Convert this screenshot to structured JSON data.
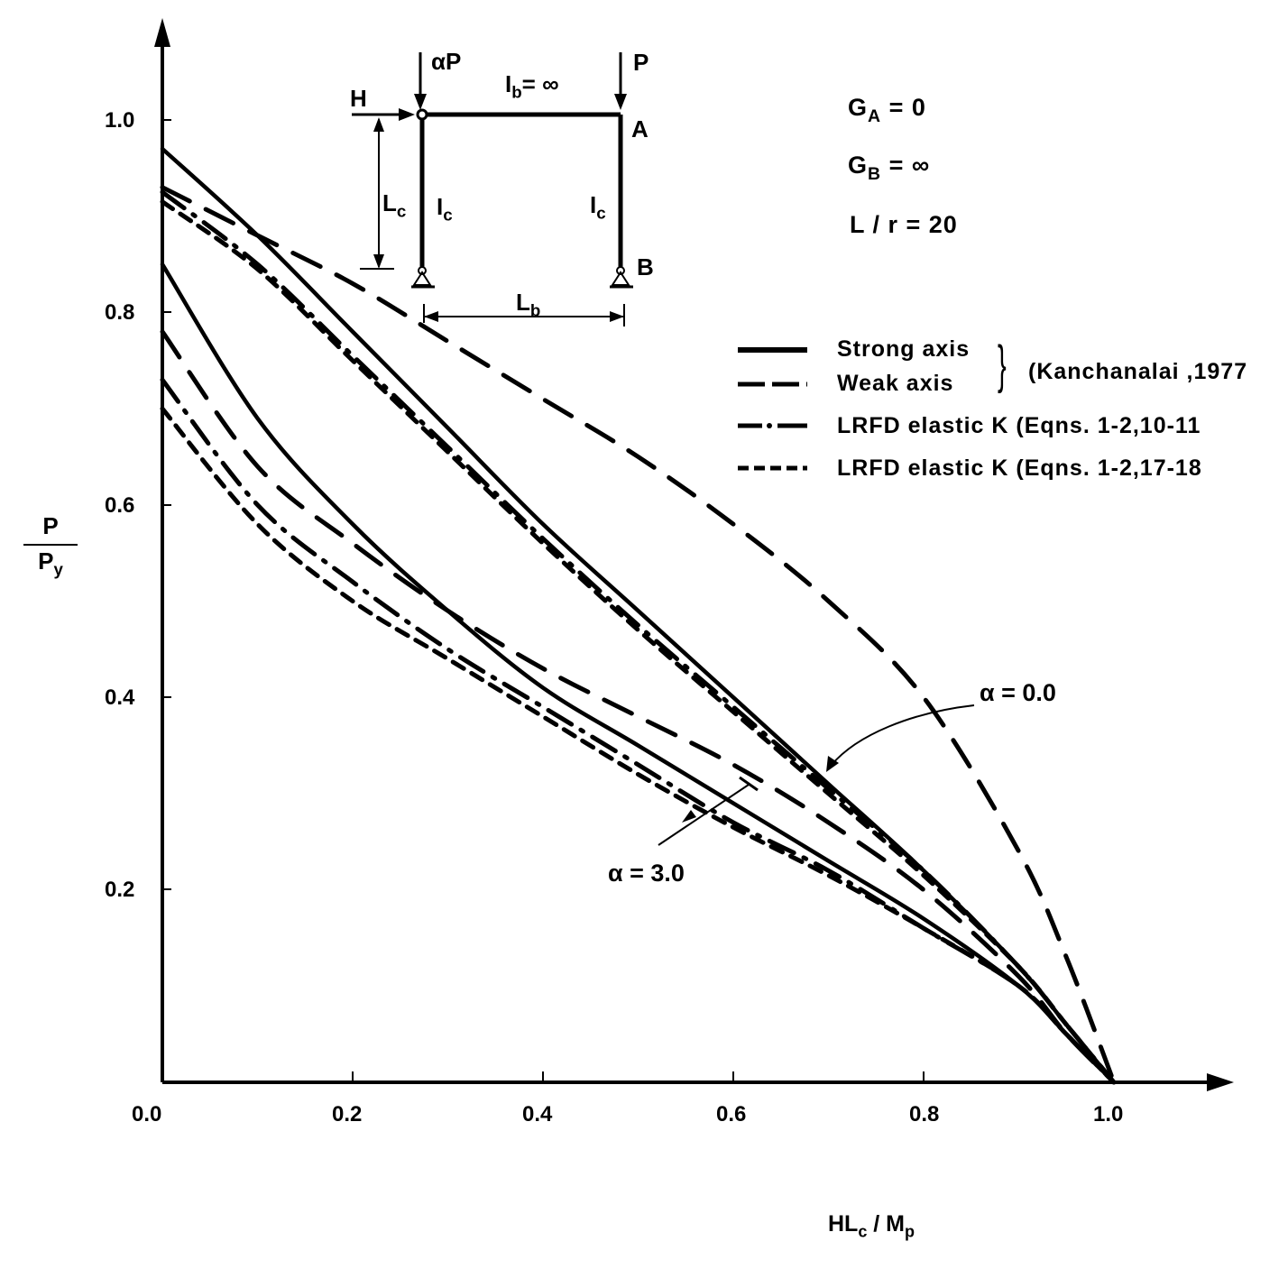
{
  "chart_data": {
    "type": "line",
    "title": "",
    "xlabel": "HLc / Mp",
    "ylabel": "P / Py",
    "xlim": [
      0.0,
      1.1
    ],
    "ylim": [
      0.0,
      1.1
    ],
    "grid": false,
    "legend_position": "upper right",
    "x_ticks": [
      "0.0",
      "0.2",
      "0.4",
      "0.6",
      "0.8",
      "1.0"
    ],
    "y_ticks": [
      "0.2",
      "0.4",
      "0.6",
      "0.8",
      "1.0"
    ],
    "parameters": [
      "GA = 0",
      "GB = ∞",
      "L / r = 20"
    ],
    "legend": [
      {
        "style": "solid",
        "label": "Strong axis"
      },
      {
        "style": "dashed",
        "label": "Weak axis"
      },
      {
        "style": "dash-dot",
        "label": "LRFD elastic K (Eqns. 1-2,10-11)"
      },
      {
        "style": "short-dash",
        "label": "LRFD elastic K (Eqns. 1-2,17-18)"
      }
    ],
    "legend_group_note": "(Kanchanalai ,1977)",
    "annotations": [
      "α = 0.0",
      "α = 3.0"
    ],
    "series": [
      {
        "name": "Strong axis, α = 0.0",
        "style": "solid",
        "x": [
          0.0,
          0.1,
          0.2,
          0.3,
          0.4,
          0.5,
          0.6,
          0.7,
          0.8,
          0.9,
          0.95,
          1.0
        ],
        "y": [
          0.97,
          0.88,
          0.78,
          0.68,
          0.58,
          0.49,
          0.4,
          0.31,
          0.22,
          0.12,
          0.06,
          0.0
        ]
      },
      {
        "name": "Weak axis, α = 0.0",
        "style": "dashed",
        "x": [
          0.0,
          0.1,
          0.2,
          0.3,
          0.4,
          0.5,
          0.6,
          0.7,
          0.8,
          0.9,
          0.95,
          1.0
        ],
        "y": [
          0.93,
          0.88,
          0.83,
          0.77,
          0.71,
          0.65,
          0.58,
          0.5,
          0.4,
          0.24,
          0.13,
          0.0
        ]
      },
      {
        "name": "LRFD (10-11), α = 0.0",
        "style": "dash-dot",
        "x": [
          0.0,
          0.1,
          0.2,
          0.3,
          0.4,
          0.5,
          0.6,
          0.7,
          0.8,
          0.9,
          0.95,
          1.0
        ],
        "y": [
          0.925,
          0.85,
          0.755,
          0.66,
          0.565,
          0.475,
          0.39,
          0.305,
          0.22,
          0.12,
          0.06,
          0.0
        ]
      },
      {
        "name": "LRFD (17-18), α = 0.0",
        "style": "short-dash",
        "x": [
          0.0,
          0.1,
          0.2,
          0.3,
          0.4,
          0.5,
          0.6,
          0.7,
          0.8,
          0.9,
          0.95,
          1.0
        ],
        "y": [
          0.915,
          0.845,
          0.75,
          0.655,
          0.56,
          0.47,
          0.385,
          0.3,
          0.215,
          0.12,
          0.06,
          0.0
        ]
      },
      {
        "name": "Strong axis, α = 3.0",
        "style": "solid",
        "x": [
          0.0,
          0.1,
          0.2,
          0.3,
          0.4,
          0.5,
          0.6,
          0.7,
          0.8,
          0.9,
          0.95,
          1.0
        ],
        "y": [
          0.85,
          0.69,
          0.58,
          0.49,
          0.41,
          0.35,
          0.29,
          0.23,
          0.17,
          0.1,
          0.05,
          0.0
        ]
      },
      {
        "name": "Weak axis, α = 3.0",
        "style": "dashed",
        "x": [
          0.0,
          0.1,
          0.2,
          0.3,
          0.4,
          0.5,
          0.6,
          0.7,
          0.8,
          0.9,
          0.95,
          1.0
        ],
        "y": [
          0.78,
          0.64,
          0.56,
          0.49,
          0.43,
          0.38,
          0.33,
          0.27,
          0.2,
          0.11,
          0.05,
          0.0
        ]
      },
      {
        "name": "LRFD (10-11), α = 3.0",
        "style": "dash-dot",
        "x": [
          0.0,
          0.1,
          0.2,
          0.3,
          0.4,
          0.5,
          0.6,
          0.7,
          0.8,
          0.9,
          0.95,
          1.0
        ],
        "y": [
          0.73,
          0.6,
          0.52,
          0.45,
          0.39,
          0.33,
          0.27,
          0.22,
          0.16,
          0.1,
          0.05,
          0.0
        ]
      },
      {
        "name": "LRFD (17-18), α = 3.0",
        "style": "short-dash",
        "x": [
          0.0,
          0.1,
          0.2,
          0.3,
          0.4,
          0.5,
          0.6,
          0.7,
          0.8,
          0.9,
          0.95,
          1.0
        ],
        "y": [
          0.7,
          0.58,
          0.5,
          0.44,
          0.38,
          0.32,
          0.265,
          0.215,
          0.16,
          0.1,
          0.05,
          0.0
        ]
      }
    ]
  },
  "axes": {
    "x_ticks": [
      "0.0",
      "0.2",
      "0.4",
      "0.6",
      "0.8",
      "1.0"
    ],
    "y_ticks": [
      "0.2",
      "0.4",
      "0.6",
      "0.8",
      "1.0"
    ],
    "xlabel_main": "HL",
    "xlabel_sub": "c",
    "xlabel_mid": " / M",
    "xlabel_sub2": "p",
    "ylabel_num": "P",
    "ylabel_den": "P",
    "ylabel_den_sub": "y"
  },
  "params": {
    "ga_main": "G",
    "ga_sub": "A",
    "ga_rest": " = 0",
    "gb_main": "G",
    "gb_sub": "B",
    "gb_rest": " = ∞",
    "lr": "L / r = 20"
  },
  "legend": {
    "strong": "Strong axis",
    "weak": "Weak axis",
    "brace": "}",
    "source": "(Kanchanalai ,1977",
    "lrfd1": "LRFD elastic K (Eqns. 1-2,10-11",
    "lrfd2": "LRFD elastic K (Eqns. 1-2,17-18"
  },
  "annotations": {
    "alpha0": "α = 0.0",
    "alpha3": "α = 3.0"
  },
  "frame": {
    "ap": "αP",
    "p": "P",
    "h": "H",
    "ib_main": "I",
    "ib_sub": "b",
    "ib_rest": "= ∞",
    "a": "A",
    "b": "B",
    "lc_main": "L",
    "lc_sub": "c",
    "ic1_main": "I",
    "ic1_sub": "c",
    "ic2_main": "I",
    "ic2_sub": "c",
    "lb_main": "L",
    "lb_sub": "b"
  }
}
